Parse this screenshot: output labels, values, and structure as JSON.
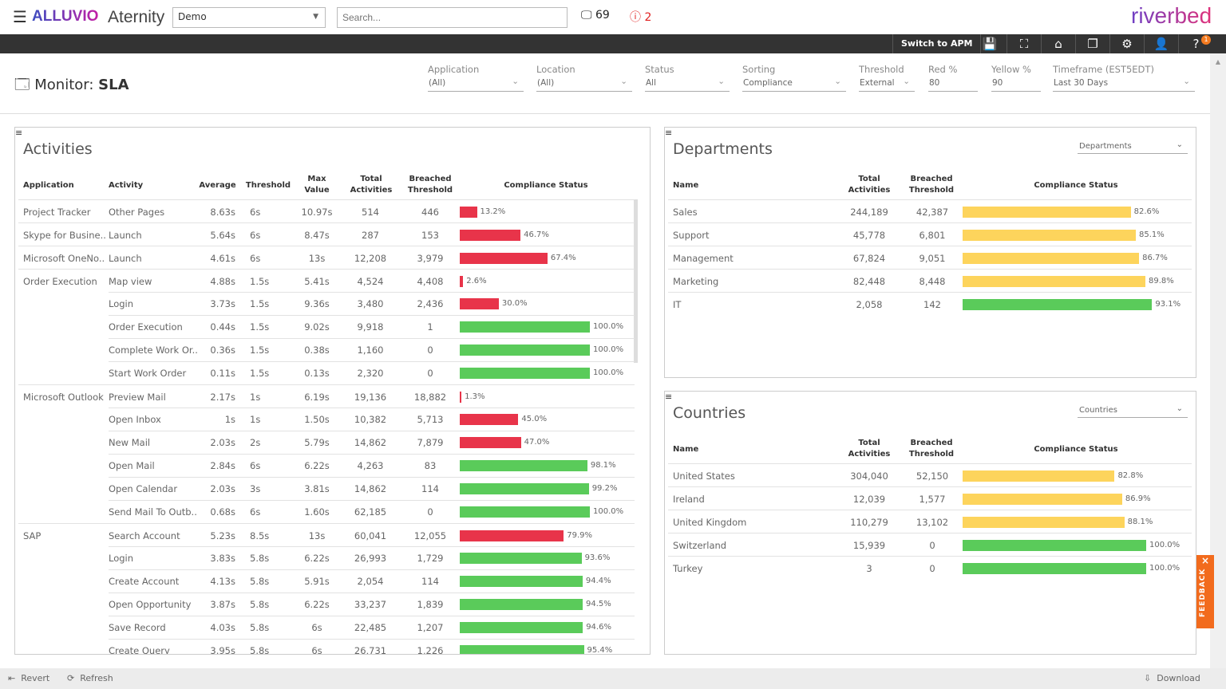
{
  "app": {
    "brand": "ALLUVIO",
    "product": "Aternity",
    "account": "Demo",
    "search_placeholder": "Search...",
    "devices": "69",
    "alerts": "2",
    "vendor": "riverbed"
  },
  "nav": {
    "switch_label": "Switch to APM",
    "help_badge": "1",
    "icons": [
      "save-icon",
      "fullscreen-icon",
      "home-icon",
      "bookmark-icon",
      "gear-icon",
      "user-icon",
      "help-icon"
    ]
  },
  "page": {
    "title_prefix": "Monitor:",
    "title": "SLA"
  },
  "filters": [
    {
      "label": "Application",
      "value": "(All)"
    },
    {
      "label": "Location",
      "value": "(All)"
    },
    {
      "label": "Status",
      "value": "All"
    },
    {
      "label": "Sorting",
      "value": "Compliance"
    },
    {
      "label": "Threshold",
      "value": "External"
    },
    {
      "label": "Red %",
      "value": "80"
    },
    {
      "label": "Yellow %",
      "value": "90"
    },
    {
      "label": "Timeframe (EST5EDT)",
      "value": "Last 30 Days"
    }
  ],
  "colors": {
    "red": "#e8344a",
    "yellow": "#fdd45c",
    "green": "#5acb5a"
  },
  "activities": {
    "title": "Activities",
    "headers": [
      "Application",
      "Activity",
      "Average",
      "Threshold",
      "Max Value",
      "Total Activities",
      "Breached Threshold",
      "Compliance Status"
    ],
    "rows": [
      [
        "Project Tracker",
        "Other Pages",
        "8.63s",
        "6s",
        "10.97s",
        "514",
        "446",
        13.2,
        "red"
      ],
      [
        "Skype for Busine..",
        "Launch",
        "5.64s",
        "6s",
        "8.47s",
        "287",
        "153",
        46.7,
        "red"
      ],
      [
        "Microsoft OneNo..",
        "Launch",
        "4.61s",
        "6s",
        "13s",
        "12,208",
        "3,979",
        67.4,
        "red"
      ],
      [
        "Order Execution",
        "Map view",
        "4.88s",
        "1.5s",
        "5.41s",
        "4,524",
        "4,408",
        2.6,
        "red"
      ],
      [
        "",
        "Login",
        "3.73s",
        "1.5s",
        "9.36s",
        "3,480",
        "2,436",
        30.0,
        "red"
      ],
      [
        "",
        "Order Execution",
        "0.44s",
        "1.5s",
        "9.02s",
        "9,918",
        "1",
        100.0,
        "green"
      ],
      [
        "",
        "Complete Work Or..",
        "0.36s",
        "1.5s",
        "0.38s",
        "1,160",
        "0",
        100.0,
        "green"
      ],
      [
        "",
        "Start Work Order",
        "0.11s",
        "1.5s",
        "0.13s",
        "2,320",
        "0",
        100.0,
        "green"
      ],
      [
        "Microsoft Outlook",
        "Preview Mail",
        "2.17s",
        "1s",
        "6.19s",
        "19,136",
        "18,882",
        1.3,
        "red"
      ],
      [
        "",
        "Open Inbox",
        "1s",
        "1s",
        "1.50s",
        "10,382",
        "5,713",
        45.0,
        "red"
      ],
      [
        "",
        "New Mail",
        "2.03s",
        "2s",
        "5.79s",
        "14,862",
        "7,879",
        47.0,
        "red"
      ],
      [
        "",
        "Open Mail",
        "2.84s",
        "6s",
        "6.22s",
        "4,263",
        "83",
        98.1,
        "green"
      ],
      [
        "",
        "Open Calendar",
        "2.03s",
        "3s",
        "3.81s",
        "14,862",
        "114",
        99.2,
        "green"
      ],
      [
        "",
        "Send Mail To Outb..",
        "0.68s",
        "6s",
        "1.60s",
        "62,185",
        "0",
        100.0,
        "green"
      ],
      [
        "SAP",
        "Search Account",
        "5.23s",
        "8.5s",
        "13s",
        "60,041",
        "12,055",
        79.9,
        "red"
      ],
      [
        "",
        "Login",
        "3.83s",
        "5.8s",
        "6.22s",
        "26,993",
        "1,729",
        93.6,
        "green"
      ],
      [
        "",
        "Create Account",
        "4.13s",
        "5.8s",
        "5.91s",
        "2,054",
        "114",
        94.4,
        "green"
      ],
      [
        "",
        "Open Opportunity",
        "3.87s",
        "5.8s",
        "6.22s",
        "33,237",
        "1,839",
        94.5,
        "green"
      ],
      [
        "",
        "Save Record",
        "4.03s",
        "5.8s",
        "6s",
        "22,485",
        "1,207",
        94.6,
        "green"
      ],
      [
        "",
        "Create Query",
        "3.95s",
        "5.8s",
        "6s",
        "26,731",
        "1,226",
        95.4,
        "green"
      ]
    ]
  },
  "departments": {
    "title": "Departments",
    "selector": "Departments",
    "headers": [
      "Name",
      "Total Activities",
      "Breached Threshold",
      "Compliance Status"
    ],
    "rows": [
      [
        "Sales",
        "244,189",
        "42,387",
        82.6,
        "yellow"
      ],
      [
        "Support",
        "45,778",
        "6,801",
        85.1,
        "yellow"
      ],
      [
        "Management",
        "67,824",
        "9,051",
        86.7,
        "yellow"
      ],
      [
        "Marketing",
        "82,448",
        "8,448",
        89.8,
        "yellow"
      ],
      [
        "IT",
        "2,058",
        "142",
        93.1,
        "green"
      ]
    ]
  },
  "countries": {
    "title": "Countries",
    "selector": "Countries",
    "headers": [
      "Name",
      "Total Activities",
      "Breached Threshold",
      "Compliance Status"
    ],
    "rows": [
      [
        "United States",
        "304,040",
        "52,150",
        82.8,
        "yellow"
      ],
      [
        "Ireland",
        "12,039",
        "1,577",
        86.9,
        "yellow"
      ],
      [
        "United Kingdom",
        "110,279",
        "13,102",
        88.1,
        "yellow"
      ],
      [
        "Switzerland",
        "15,939",
        "0",
        100.0,
        "green"
      ],
      [
        "Turkey",
        "3",
        "0",
        100.0,
        "green"
      ]
    ]
  },
  "footer": {
    "revert": "Revert",
    "refresh": "Refresh",
    "download": "Download"
  },
  "feedback": "FEEDBACK"
}
